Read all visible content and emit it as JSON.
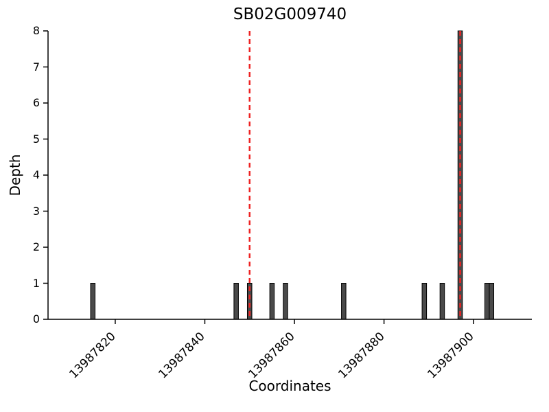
{
  "chart_data": {
    "type": "bar",
    "title": "SB02G009740",
    "xlabel": "Coordinates",
    "ylabel": "Depth",
    "xlim": [
      13987805,
      13987913
    ],
    "ylim": [
      0,
      8
    ],
    "xticks": [
      13987820,
      13987840,
      13987860,
      13987880,
      13987900
    ],
    "yticks": [
      0,
      1,
      2,
      3,
      4,
      5,
      6,
      7,
      8
    ],
    "grid": false,
    "legend": null,
    "bars": [
      {
        "x": 13987815,
        "depth": 1
      },
      {
        "x": 13987847,
        "depth": 1
      },
      {
        "x": 13987850,
        "depth": 1
      },
      {
        "x": 13987855,
        "depth": 1
      },
      {
        "x": 13987858,
        "depth": 1
      },
      {
        "x": 13987871,
        "depth": 1
      },
      {
        "x": 13987889,
        "depth": 1
      },
      {
        "x": 13987893,
        "depth": 1
      },
      {
        "x": 13987897,
        "depth": 8
      },
      {
        "x": 13987903,
        "depth": 1
      },
      {
        "x": 13987904,
        "depth": 1
      }
    ],
    "vlines": [
      13987850,
      13987897
    ],
    "bar_color": "#4a4a4a",
    "bar_edge_color": "#000000",
    "vline_color": "#ee2222",
    "axis_color": "#000000"
  }
}
